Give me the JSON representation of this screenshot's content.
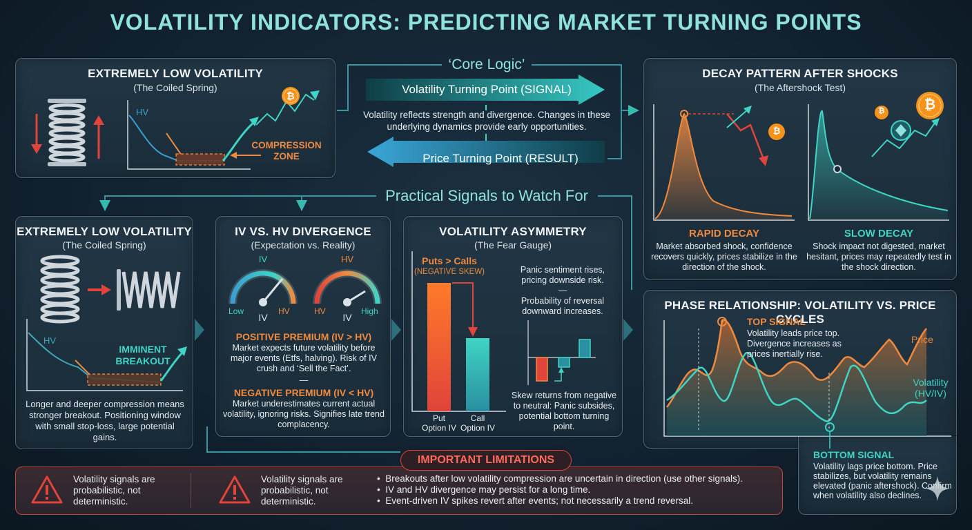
{
  "title": "VOLATILITY INDICATORS: PREDICTING MARKET TURNING POINTS",
  "core": {
    "label": "‘Core Logic’",
    "signal": "Volatility Turning Point (SIGNAL)",
    "text": "Volatility reflects strength and divergence. Changes in these underlying dynamics provide early opportunities.",
    "result": "Price Turning Point (RESULT)"
  },
  "top_low": {
    "title": "EXTREMELY LOW VOLATILITY",
    "subtitle": "(The Coiled Spring)",
    "hv": "HV",
    "zone_line1": "COMPRESSION",
    "zone_line2": "ZONE",
    "coin": "₿"
  },
  "decay": {
    "title": "DECAY PATTERN AFTER SHOCKS",
    "subtitle": "(The Aftershock Test)",
    "rapid_title": "RAPID DECAY",
    "rapid_text": "Market absorbed shock, confidence recovers quickly, prices stabilize in the direction of the shock.",
    "slow_title": "SLOW DECAY",
    "slow_text": "Shock impact not digested, market hesitant, prices may repeatedly test in the shock direction.",
    "coin": "₿"
  },
  "practical": "Practical Signals to Watch For",
  "low2": {
    "title": "EXTREMELY LOW VOLATILITY",
    "subtitle": "(The Coiled Spring)",
    "hv": "HV",
    "breakout_line1": "IMMINENT",
    "breakout_line2": "BREAKOUT",
    "text": "Longer and deeper compression means stronger breakout. Positioning window with small stop-loss, large potential gains."
  },
  "ivhv": {
    "title": "IV VS. HV DIVERGENCE",
    "subtitle": "(Expectation vs. Reality)",
    "g1_top": "IV",
    "g1_low": "Low",
    "g1_mid": "IV",
    "g1_high": "HV",
    "g2_top": "HV",
    "g2_low": "HV",
    "g2_mid": "IV",
    "g2_high": "High",
    "pos_title": "POSITIVE PREMIUM (IV > HV)",
    "pos_text": "Market expects future volatility before major events (Etfs, halving). Risk of IV crush and ‘Sell the Fact’.",
    "dash": "—",
    "neg_title": "NEGATIVE PREMIUM (IV < HV)",
    "neg_text": "Market underestimates current actual volatility, ignoring risks. Signifies late trend complacency."
  },
  "asym": {
    "title": "VOLATILITY ASYMMETRY",
    "subtitle": "(The Fear Gauge)",
    "puts_calls": "Puts > Calls",
    "neg_skew": "(NEGATIVE SKEW)",
    "put_label": "Put Option IV",
    "call_label": "Call Option IV",
    "text1": "Panic sentiment rises, pricing downside risk.",
    "dash": "—",
    "text2": "Probability of reversal downward increases.",
    "text3": "Skew returns from negative to neutral: Panic subsides, potential bottom turning point."
  },
  "phase": {
    "title": "PHASE RELATIONSHIP: VOLATILITY VS. PRICE CYCLES",
    "top_signal": "TOP SIGNAL",
    "top_text": "Volatility leads price top. Divergence increases as prices inertially rise.",
    "price": "Price",
    "vol1": "Volatility",
    "vol2": "(HV/IV)",
    "bottom_signal": "BOTTOM SIGNAL",
    "bottom_text": "Volatility lags price bottom. Price stabilizes, but volatility remains elevated (panic aftershock). Confirm when volatility also declines."
  },
  "limits": {
    "title": "IMPORTANT LIMITATIONS",
    "item1": "Volatility signals are probabilistic, not deterministic.",
    "item2": "Volatility signals are probabilistic, not deterministic.",
    "bullets": [
      "Breakouts after low volatility compression are uncertain in direction (use other signals).",
      "IV and HV divergence may persist for a long time.",
      "Event-driven IV spikes revert after events; not necessarily a trend reversal."
    ],
    "bullet_mark": "•"
  },
  "colors": {
    "orange": "#f08a3e",
    "teal": "#3fd4c4",
    "red": "#e0443a",
    "title": "#8fe3dc"
  }
}
